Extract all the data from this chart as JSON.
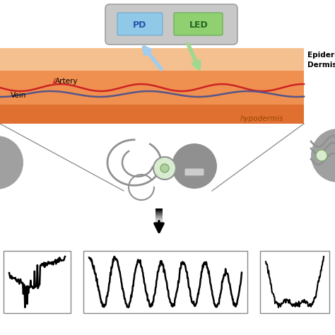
{
  "bg_color": "#ffffff",
  "skin_epi_color": "#f5c090",
  "skin_derm_color": "#f09050",
  "skin_hypo_color": "#e07030",
  "epidermis_label": "Epidermis",
  "dermis_label": "Dermis",
  "hypodermis_label": "hypodermis",
  "artery_label": "Artery",
  "vein_label": "Vein",
  "pd_label": "PD",
  "led_label": "LED",
  "pd_color": "#90c8e8",
  "led_color": "#90d070",
  "sensor_box_color": "#c8c8c8",
  "artery_color": "#cc2222",
  "vein_color": "#555588",
  "arrow_blue": "#a0ccee",
  "arrow_green": "#a0d890",
  "device_gray": "#909090",
  "device_light": "#b8b8b8",
  "line_gray": "#aaaaaa"
}
